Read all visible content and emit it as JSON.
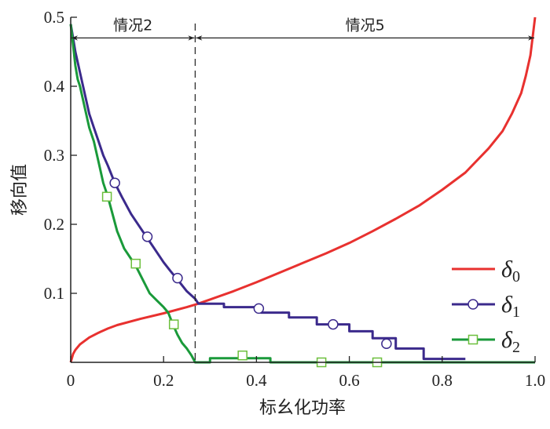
{
  "chart_data": {
    "type": "line",
    "xlabel": "标幺化功率",
    "ylabel": "移向值",
    "xlim": [
      0,
      1.0
    ],
    "ylim": [
      0,
      0.5
    ],
    "xticks": [
      "0",
      "0.2",
      "0.4",
      "0.6",
      "0.8",
      "1.0"
    ],
    "xtick_values": [
      0,
      0.2,
      0.4,
      0.6,
      0.8,
      1.0
    ],
    "yticks": [
      "0.1",
      "0.2",
      "0.3",
      "0.4",
      "0.5"
    ],
    "ytick_values": [
      0.1,
      0.2,
      0.3,
      0.4,
      0.5
    ],
    "grid": false,
    "legend_position": "right",
    "divider_x": 0.268,
    "annotations": [
      {
        "text": "情况2",
        "x_from": 0,
        "x_to": 0.268,
        "y": 0.47
      },
      {
        "text": "情况5",
        "x_from": 0.268,
        "x_to": 1.0,
        "y": 0.47
      }
    ],
    "series": [
      {
        "name": "δ0",
        "symbol": "δ",
        "sub": "0",
        "color": "#e8312f",
        "marker": "none",
        "x": [
          0,
          0.005,
          0.01,
          0.02,
          0.04,
          0.06,
          0.08,
          0.1,
          0.15,
          0.2,
          0.25,
          0.27,
          0.3,
          0.35,
          0.4,
          0.45,
          0.5,
          0.55,
          0.6,
          0.65,
          0.7,
          0.75,
          0.8,
          0.85,
          0.9,
          0.93,
          0.95,
          0.97,
          0.98,
          0.99,
          1.0
        ],
        "y": [
          0,
          0.012,
          0.018,
          0.026,
          0.036,
          0.043,
          0.049,
          0.054,
          0.063,
          0.071,
          0.08,
          0.084,
          0.091,
          0.103,
          0.116,
          0.13,
          0.144,
          0.158,
          0.173,
          0.19,
          0.208,
          0.227,
          0.25,
          0.275,
          0.31,
          0.335,
          0.36,
          0.39,
          0.415,
          0.445,
          0.5
        ],
        "markers_x": [],
        "markers_y": []
      },
      {
        "name": "δ1",
        "symbol": "δ",
        "sub": "1",
        "color": "#3b2a8c",
        "marker": "circle",
        "x": [
          0,
          0.005,
          0.01,
          0.02,
          0.03,
          0.04,
          0.05,
          0.06,
          0.07,
          0.08,
          0.095,
          0.11,
          0.13,
          0.15,
          0.165,
          0.18,
          0.2,
          0.215,
          0.23,
          0.25,
          0.268,
          0.275,
          0.33,
          0.33,
          0.41,
          0.41,
          0.47,
          0.47,
          0.53,
          0.53,
          0.6,
          0.6,
          0.65,
          0.65,
          0.7,
          0.7,
          0.76,
          0.76,
          0.85
        ],
        "y": [
          0.49,
          0.47,
          0.45,
          0.42,
          0.39,
          0.36,
          0.34,
          0.32,
          0.3,
          0.285,
          0.26,
          0.24,
          0.215,
          0.195,
          0.18,
          0.165,
          0.145,
          0.132,
          0.12,
          0.103,
          0.092,
          0.085,
          0.085,
          0.08,
          0.08,
          0.072,
          0.072,
          0.065,
          0.065,
          0.055,
          0.055,
          0.045,
          0.045,
          0.035,
          0.035,
          0.02,
          0.02,
          0.005,
          0.005
        ],
        "markers_x": [
          0.095,
          0.165,
          0.23,
          0.405,
          0.565,
          0.68
        ],
        "markers_y": [
          0.26,
          0.182,
          0.122,
          0.078,
          0.055,
          0.027
        ]
      },
      {
        "name": "δ2",
        "symbol": "δ",
        "sub": "2",
        "color": "#1a9a3a",
        "marker": "square",
        "x": [
          0,
          0.005,
          0.01,
          0.015,
          0.02,
          0.03,
          0.04,
          0.05,
          0.06,
          0.07,
          0.08,
          0.09,
          0.1,
          0.115,
          0.13,
          0.14,
          0.155,
          0.17,
          0.185,
          0.2,
          0.21,
          0.22,
          0.23,
          0.24,
          0.25,
          0.26,
          0.268,
          0.3,
          0.3,
          0.43,
          0.43,
          1.0
        ],
        "y": [
          0.49,
          0.46,
          0.43,
          0.41,
          0.4,
          0.37,
          0.34,
          0.32,
          0.29,
          0.26,
          0.24,
          0.215,
          0.19,
          0.165,
          0.15,
          0.14,
          0.12,
          0.1,
          0.09,
          0.08,
          0.072,
          0.055,
          0.04,
          0.028,
          0.02,
          0.01,
          0,
          0,
          0.006,
          0.006,
          0,
          0
        ],
        "markers_x": [
          0.078,
          0.14,
          0.222,
          0.37,
          0.54,
          0.66
        ],
        "markers_y": [
          0.24,
          0.143,
          0.055,
          0.01,
          0.0,
          0.0
        ]
      }
    ]
  }
}
